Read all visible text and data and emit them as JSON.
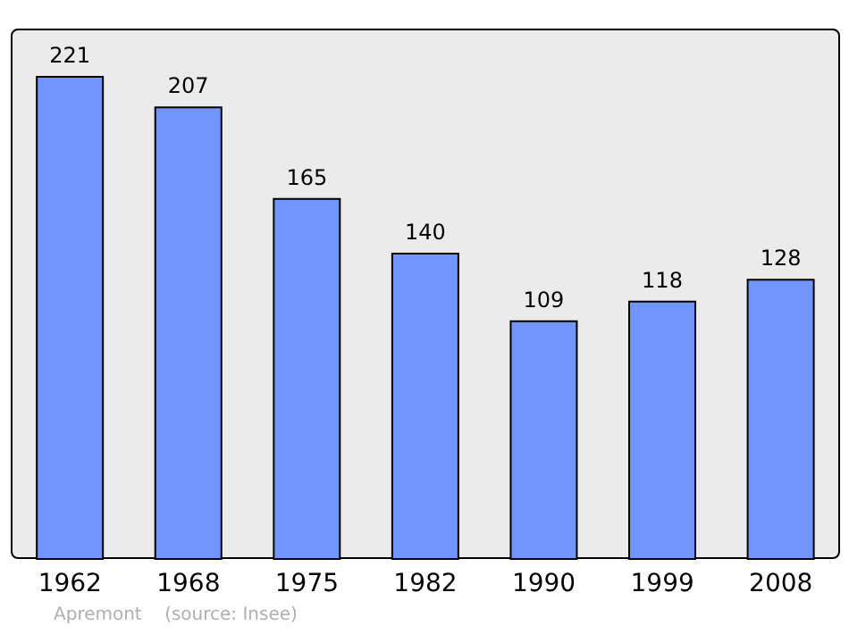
{
  "chart_data": {
    "type": "bar",
    "categories": [
      "1962",
      "1968",
      "1975",
      "1982",
      "1990",
      "1999",
      "2008"
    ],
    "values": [
      221,
      207,
      165,
      140,
      109,
      118,
      128
    ],
    "color": "#7096fe",
    "data_labels": true,
    "annotations": [
      "Apremont    (source: Insee)"
    ]
  }
}
